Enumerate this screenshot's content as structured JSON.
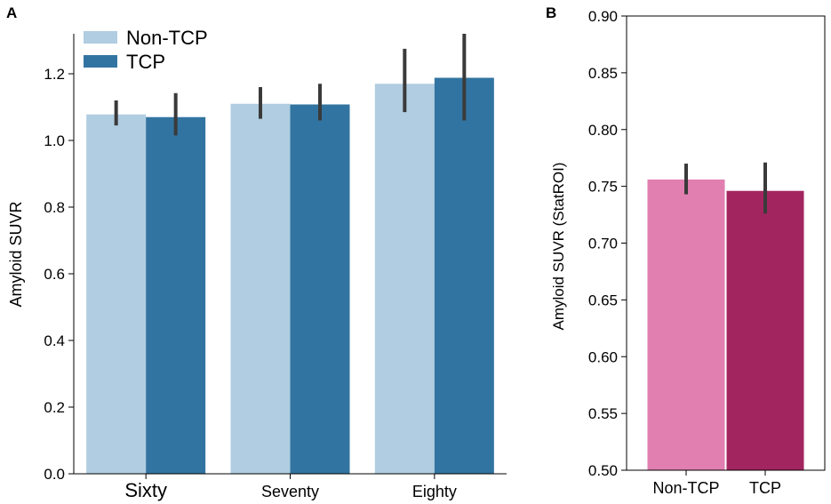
{
  "chart_data": [
    {
      "panel": "A",
      "type": "bar",
      "categories": [
        "Sixty",
        "Seventy",
        "Eighty"
      ],
      "series": [
        {
          "name": "Non-TCP",
          "color": "#b0cde1",
          "values": [
            1.078,
            1.11,
            1.17
          ],
          "err_low": [
            1.045,
            1.065,
            1.085
          ],
          "err_high": [
            1.12,
            1.16,
            1.275
          ]
        },
        {
          "name": "TCP",
          "color": "#3274a1",
          "values": [
            1.07,
            1.108,
            1.188
          ],
          "err_low": [
            1.015,
            1.06,
            1.06
          ],
          "err_high": [
            1.142,
            1.17,
            1.32
          ]
        }
      ],
      "xlabel": "",
      "ylabel": "Amyloid SUVR",
      "ylim": [
        0.0,
        1.32
      ],
      "yticks": [
        "0.0",
        "0.2",
        "0.4",
        "0.6",
        "0.8",
        "1.0",
        "1.2"
      ],
      "legend": "top-left",
      "grid": false
    },
    {
      "panel": "B",
      "type": "bar",
      "categories": [
        "Non-TCP",
        "TCP"
      ],
      "colors": [
        "#e07fb0",
        "#a3255f"
      ],
      "values": [
        0.756,
        0.746
      ],
      "err_low": [
        0.743,
        0.726
      ],
      "err_high": [
        0.77,
        0.771
      ],
      "xlabel": "",
      "ylabel": "Amyloid SUVR (StatROI)",
      "ylim": [
        0.5,
        0.9
      ],
      "yticks": [
        "0.50",
        "0.55",
        "0.60",
        "0.65",
        "0.70",
        "0.75",
        "0.80",
        "0.85",
        "0.90"
      ],
      "grid": false
    }
  ]
}
